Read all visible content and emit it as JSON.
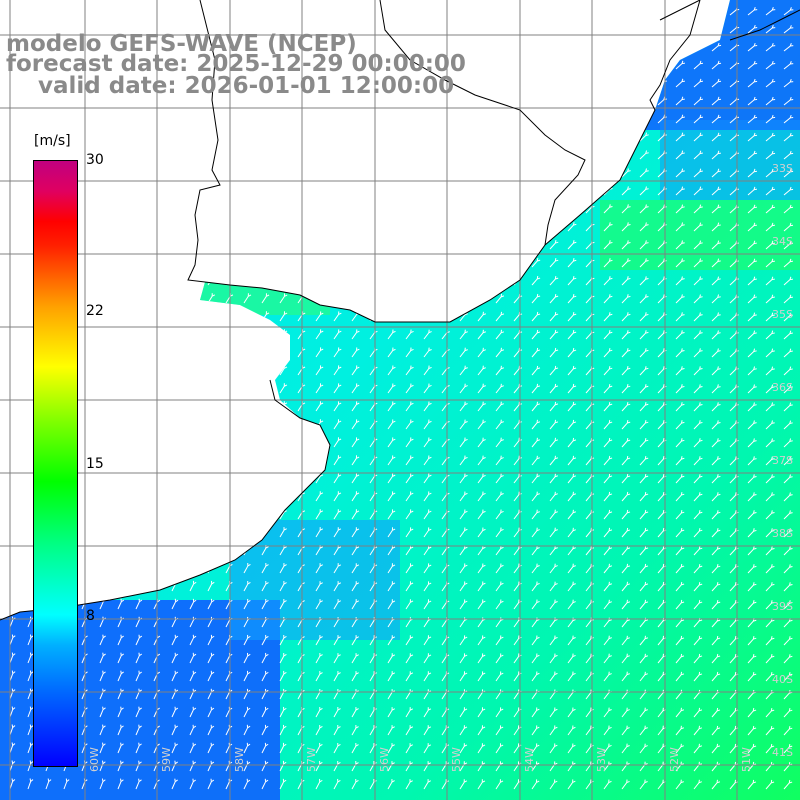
{
  "title": {
    "line1": "modelo GEFS-WAVE (NCEP)",
    "line2": "forecast date: 2025-12-29 00:00:00",
    "line3": "    valid date: 2026-01-01 12:00:00"
  },
  "colorbar": {
    "unit": "[m/s]",
    "ticks": [
      "30",
      "22",
      "15",
      "8"
    ],
    "colors": [
      "#0000ff",
      "#00b0ff",
      "#00ffff",
      "#00ff00",
      "#ffff00",
      "#ff0000",
      "#c00080"
    ]
  },
  "lat_labels": [
    "33S",
    "34S",
    "35S",
    "36S",
    "37S",
    "38S",
    "39S",
    "40S",
    "41S"
  ],
  "lon_labels": [
    "60W",
    "59W",
    "58W",
    "57W",
    "56W",
    "55W",
    "54W",
    "53W",
    "52W",
    "51W"
  ],
  "map": {
    "land_color": "#ffffff",
    "grid_color": "#808080",
    "coast_color": "#000000",
    "arrow_color": "#ffffff",
    "arrow_direction": "toward north-east"
  }
}
